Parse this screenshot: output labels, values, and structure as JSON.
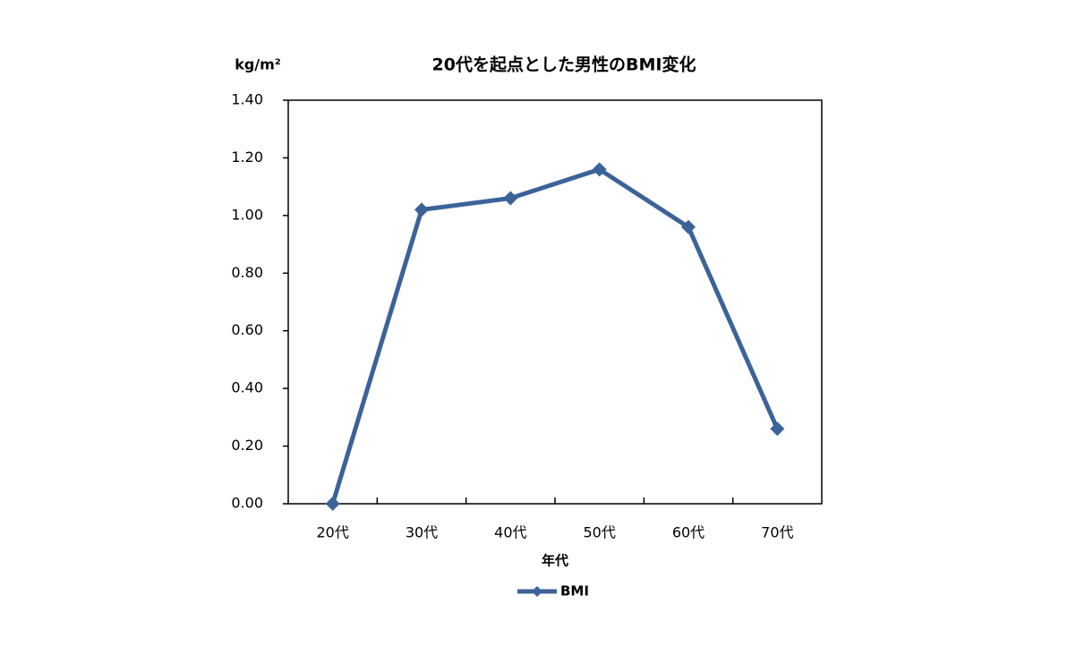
{
  "chart_data": {
    "type": "line",
    "title": "20代を起点とした男性のBMI変化",
    "y_label": "kg/m²",
    "x_label": "年代",
    "categories": [
      "20代",
      "30代",
      "40代",
      "50代",
      "60代",
      "70代"
    ],
    "series": [
      {
        "name": "BMI",
        "color": "#3b6399",
        "values": [
          0.0,
          1.02,
          1.06,
          1.16,
          0.96,
          0.26
        ]
      }
    ],
    "ylim": [
      0,
      1.4
    ],
    "yticks": [
      {
        "value": 0,
        "label": "0.00"
      },
      {
        "value": 0.2,
        "label": "0.20"
      },
      {
        "value": 0.4,
        "label": "0.40"
      },
      {
        "value": 0.6,
        "label": "0.60"
      },
      {
        "value": 0.8,
        "label": "0.80"
      },
      {
        "value": 1.0,
        "label": "1.00"
      },
      {
        "value": 1.2,
        "label": "1.20"
      },
      {
        "value": 1.4,
        "label": "1.40"
      }
    ],
    "legend": "bottom"
  }
}
